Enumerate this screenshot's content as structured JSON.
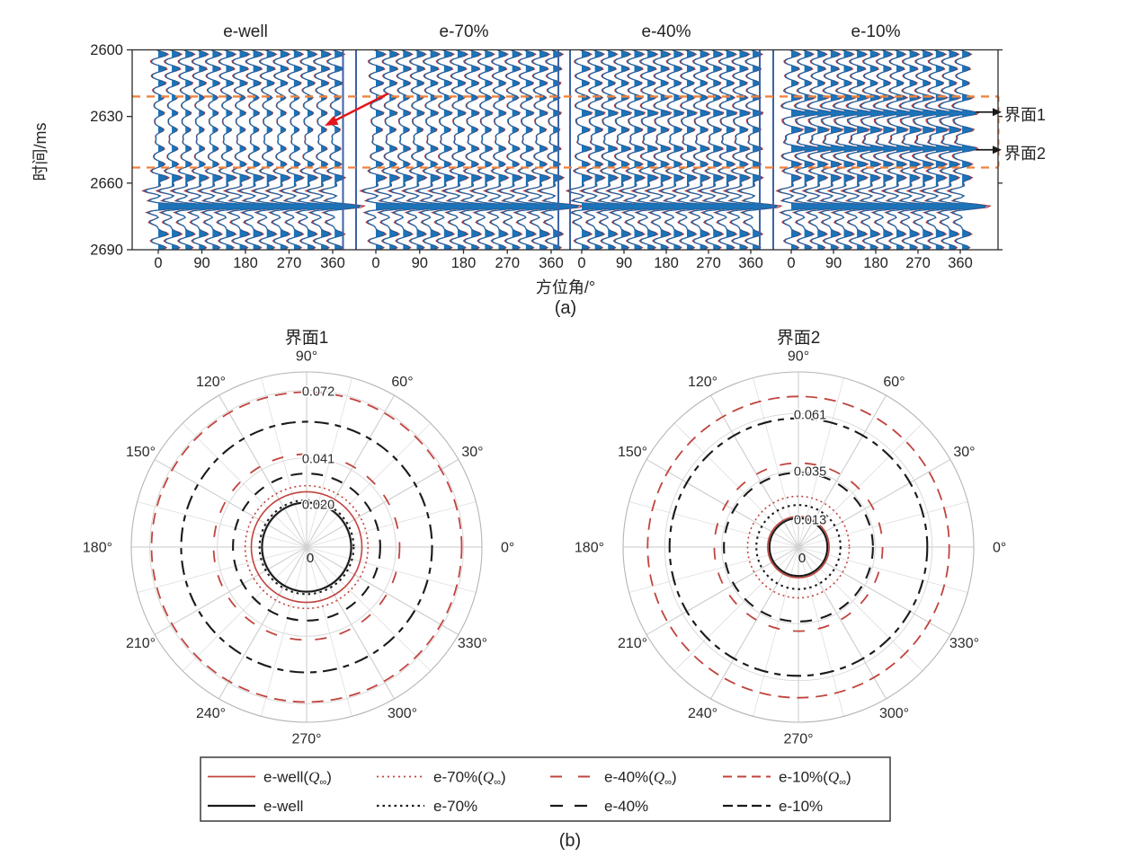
{
  "figure": {
    "caption_a": "(a)",
    "caption_b": "(b)",
    "colors": {
      "trace_fill": "#1C73B8",
      "trace_line": "#1866A8",
      "q_trace_line": "#B5282A",
      "panel_separator": "#3D63A6",
      "band_dash": "#F0823C",
      "annotation_arrow": "#E2161D",
      "axis": "#2b2b2b",
      "grid": "#D6D6D6",
      "polar_red": "#C0443E",
      "polar_black": "#1A1A1A"
    }
  },
  "series_styles": {
    "e-well(Q∞)": {
      "color": "#C0443E",
      "dash": "",
      "legend_dash": "",
      "width": 1.6
    },
    "e-70%(Q∞)": {
      "color": "#C0443E",
      "dash": "2 3.5",
      "legend_dash": "2 4",
      "width": 1.6
    },
    "e-40%(Q∞)": {
      "color": "#C0443E",
      "dash": "13 15",
      "legend_dash": "13 18",
      "width": 1.8
    },
    "e-10%(Q∞)": {
      "color": "#C0443E",
      "dash": "13 8",
      "legend_dash": "10 6",
      "width": 1.8
    },
    "e-well": {
      "color": "#1A1A1A",
      "dash": "",
      "legend_dash": "",
      "width": 2.1
    },
    "e-70%": {
      "color": "#1A1A1A",
      "dash": "2.5 4",
      "legend_dash": "2.5 4",
      "width": 2.1
    },
    "e-40%": {
      "color": "#1A1A1A",
      "dash": "13 10",
      "legend_dash": "14 13",
      "width": 2.1
    },
    "e-10%": {
      "color": "#1A1A1A",
      "dash": "16 7 7 7",
      "legend_dash": "11 5",
      "width": 2.1
    }
  },
  "legend": {
    "rows": [
      [
        "e-well(Q∞)",
        "e-70%(Q∞)",
        "e-40%(Q∞)",
        "e-10%(Q∞)"
      ],
      [
        "e-well",
        "e-70%",
        "e-40%",
        "e-10%"
      ]
    ]
  },
  "chart_data": [
    {
      "type": "seismic-wiggle-gather",
      "panel_titles": [
        "e-well",
        "e-70%",
        "e-40%",
        "e-10%"
      ],
      "xlabel": "方位角/°",
      "ylabel": "时间/ms",
      "x_ticks_per_panel": [
        0,
        90,
        180,
        270,
        360
      ],
      "y_ticks": [
        2600,
        2630,
        2660,
        2690
      ],
      "y_range": [
        2600,
        2690
      ],
      "dashed_band_ms": [
        2621,
        2653
      ],
      "interface_markers": [
        {
          "label": "界面1",
          "time_ms": 2628
        },
        {
          "label": "界面2",
          "time_ms": 2645
        }
      ],
      "wiggle_model": {
        "traces_per_panel": 14,
        "azimuth_step_deg": 28,
        "wavelet_sigma_ms": 2.3,
        "q_amp_factor": 1.15,
        "base_events": [
          [
            2602,
            0.85
          ],
          [
            2608.5,
            0.78
          ],
          [
            2615,
            0.7
          ],
          [
            2657.5,
            0.9
          ],
          [
            2663.5,
            -1.3
          ],
          [
            2670.5,
            2.6
          ],
          [
            2677.5,
            -0.8
          ],
          [
            2683,
            0.85
          ],
          [
            2689,
            0.7
          ]
        ],
        "interface_event_times": [
          2621.5,
          2628.5,
          2636,
          2644.5,
          2651.5
        ],
        "interface_event_amps": {
          "e-well": [
            0.5,
            0.55,
            0.5,
            0.55,
            0.6
          ],
          "e-70%": [
            0.6,
            0.72,
            0.6,
            0.7,
            0.65
          ],
          "e-40%": [
            0.72,
            0.95,
            0.75,
            0.9,
            0.75
          ],
          "e-10%": [
            1.0,
            1.55,
            1.1,
            1.5,
            0.95
          ]
        }
      }
    },
    {
      "type": "polar",
      "title": "界面1",
      "angle_tick_labels": [
        "0°",
        "30°",
        "60°",
        "90°",
        "120°",
        "150°",
        "180°",
        "210°",
        "240°",
        "270°",
        "300°",
        "330°"
      ],
      "r_origin_label": "0",
      "r_ticks": [
        0.02,
        0.041,
        0.072
      ],
      "r_tick_labels": [
        "0.020",
        "0.041",
        "0.072"
      ],
      "r_max": 0.0805,
      "series": [
        {
          "name": "e-10%(Q∞)",
          "value": 0.0712
        },
        {
          "name": "e-10%",
          "value": 0.0576
        },
        {
          "name": "e-40%(Q∞)",
          "value": 0.0427
        },
        {
          "name": "e-40%",
          "value": 0.0338
        },
        {
          "name": "e-70%(Q∞)",
          "value": 0.0282
        },
        {
          "name": "e-well(Q∞)",
          "value": 0.0254
        },
        {
          "name": "e-70%",
          "value": 0.0216
        },
        {
          "name": "e-well",
          "value": 0.0205
        }
      ]
    },
    {
      "type": "polar",
      "title": "界面2",
      "angle_tick_labels": [
        "0°",
        "30°",
        "60°",
        "90°",
        "120°",
        "150°",
        "180°",
        "210°",
        "240°",
        "270°",
        "300°",
        "330°"
      ],
      "r_origin_label": "0",
      "r_ticks": [
        0.013,
        0.035,
        0.061
      ],
      "r_tick_labels": [
        "0.013",
        "0.035",
        "0.061"
      ],
      "r_max": 0.08,
      "series": [
        {
          "name": "e-10%(Q∞)",
          "value": 0.0688
        },
        {
          "name": "e-10%",
          "value": 0.0588
        },
        {
          "name": "e-40%(Q∞)",
          "value": 0.0384
        },
        {
          "name": "e-40%",
          "value": 0.034
        },
        {
          "name": "e-70%(Q∞)",
          "value": 0.0232
        },
        {
          "name": "e-70%",
          "value": 0.0192
        },
        {
          "name": "e-well(Q∞)",
          "value": 0.014
        },
        {
          "name": "e-well",
          "value": 0.0132
        }
      ]
    }
  ]
}
